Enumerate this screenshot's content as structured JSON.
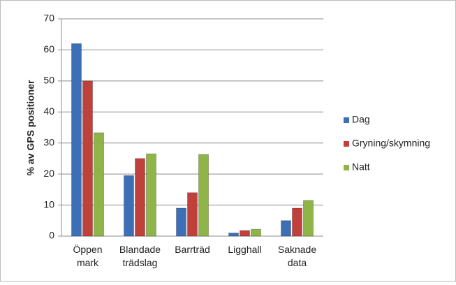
{
  "chart_data": {
    "type": "bar",
    "y_label": "% av GPS positioner",
    "categories": [
      "Öppen mark",
      "Blandade trädslag",
      "Barrträd",
      "Ligghall",
      "Saknade data"
    ],
    "series": [
      {
        "name": "Dag",
        "color": "#3d6fb6",
        "values": [
          62,
          19.5,
          9,
          1,
          5
        ]
      },
      {
        "name": "Gryning/skymning",
        "color": "#c0413c",
        "values": [
          50,
          25,
          14,
          1.8,
          9
        ]
      },
      {
        "name": "Natt",
        "color": "#8fb548",
        "values": [
          33.3,
          26.5,
          26.3,
          2.2,
          11.5
        ]
      }
    ],
    "ylim": [
      0,
      70
    ],
    "yticks": [
      0,
      10,
      20,
      30,
      40,
      50,
      60,
      70
    ],
    "grid": true,
    "legend": "right"
  }
}
